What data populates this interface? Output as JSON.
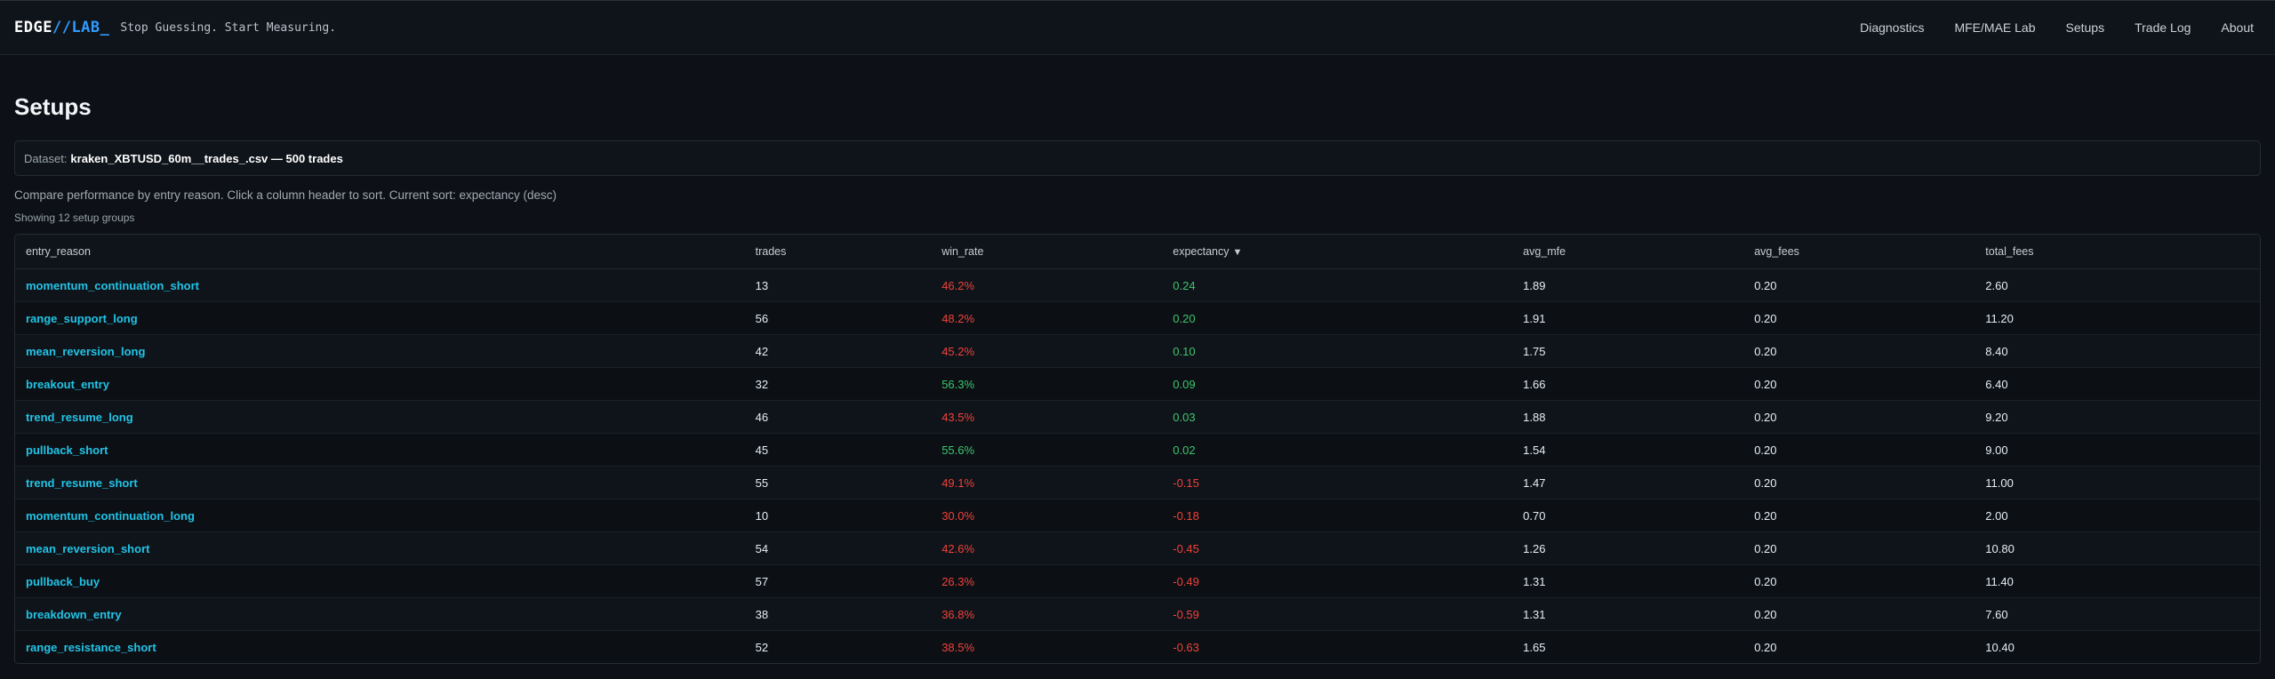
{
  "header": {
    "logo": {
      "part1": "EDGE",
      "part2": "//",
      "part3": "LAB",
      "part4": "_"
    },
    "tagline": "Stop Guessing. Start Measuring.",
    "nav": [
      "Diagnostics",
      "MFE/MAE Lab",
      "Setups",
      "Trade Log",
      "About"
    ]
  },
  "page": {
    "title": "Setups",
    "dataset_label": "Dataset:",
    "dataset_value": "kraken_XBTUSD_60m__trades_.csv — 500 trades",
    "description": "Compare performance by entry reason. Click a column header to sort. Current sort: expectancy (desc)",
    "showing": "Showing 12 setup groups"
  },
  "colors": {
    "link": "#22c3e6",
    "positive": "#3ec46d",
    "negative": "#f0413a",
    "accent": "#2f9bff"
  },
  "table": {
    "columns": [
      "entry_reason",
      "trades",
      "win_rate",
      "expectancy",
      "avg_mfe",
      "avg_fees",
      "total_fees"
    ],
    "sort_indicator": "▼",
    "rows": [
      {
        "entry_reason": "momentum_continuation_short",
        "trades": "13",
        "win_rate": "46.2%",
        "win_class": "neg",
        "expectancy": "0.24",
        "exp_class": "pos",
        "avg_mfe": "1.89",
        "avg_fees": "0.20",
        "total_fees": "2.60"
      },
      {
        "entry_reason": "range_support_long",
        "trades": "56",
        "win_rate": "48.2%",
        "win_class": "neg",
        "expectancy": "0.20",
        "exp_class": "pos",
        "avg_mfe": "1.91",
        "avg_fees": "0.20",
        "total_fees": "11.20"
      },
      {
        "entry_reason": "mean_reversion_long",
        "trades": "42",
        "win_rate": "45.2%",
        "win_class": "neg",
        "expectancy": "0.10",
        "exp_class": "pos",
        "avg_mfe": "1.75",
        "avg_fees": "0.20",
        "total_fees": "8.40"
      },
      {
        "entry_reason": "breakout_entry",
        "trades": "32",
        "win_rate": "56.3%",
        "win_class": "pos",
        "expectancy": "0.09",
        "exp_class": "pos",
        "avg_mfe": "1.66",
        "avg_fees": "0.20",
        "total_fees": "6.40"
      },
      {
        "entry_reason": "trend_resume_long",
        "trades": "46",
        "win_rate": "43.5%",
        "win_class": "neg",
        "expectancy": "0.03",
        "exp_class": "pos",
        "avg_mfe": "1.88",
        "avg_fees": "0.20",
        "total_fees": "9.20"
      },
      {
        "entry_reason": "pullback_short",
        "trades": "45",
        "win_rate": "55.6%",
        "win_class": "pos",
        "expectancy": "0.02",
        "exp_class": "pos",
        "avg_mfe": "1.54",
        "avg_fees": "0.20",
        "total_fees": "9.00"
      },
      {
        "entry_reason": "trend_resume_short",
        "trades": "55",
        "win_rate": "49.1%",
        "win_class": "neg",
        "expectancy": "-0.15",
        "exp_class": "neg",
        "avg_mfe": "1.47",
        "avg_fees": "0.20",
        "total_fees": "11.00"
      },
      {
        "entry_reason": "momentum_continuation_long",
        "trades": "10",
        "win_rate": "30.0%",
        "win_class": "neg",
        "expectancy": "-0.18",
        "exp_class": "neg",
        "avg_mfe": "0.70",
        "avg_fees": "0.20",
        "total_fees": "2.00"
      },
      {
        "entry_reason": "mean_reversion_short",
        "trades": "54",
        "win_rate": "42.6%",
        "win_class": "neg",
        "expectancy": "-0.45",
        "exp_class": "neg",
        "avg_mfe": "1.26",
        "avg_fees": "0.20",
        "total_fees": "10.80"
      },
      {
        "entry_reason": "pullback_buy",
        "trades": "57",
        "win_rate": "26.3%",
        "win_class": "neg",
        "expectancy": "-0.49",
        "exp_class": "neg",
        "avg_mfe": "1.31",
        "avg_fees": "0.20",
        "total_fees": "11.40"
      },
      {
        "entry_reason": "breakdown_entry",
        "trades": "38",
        "win_rate": "36.8%",
        "win_class": "neg",
        "expectancy": "-0.59",
        "exp_class": "neg",
        "avg_mfe": "1.31",
        "avg_fees": "0.20",
        "total_fees": "7.60"
      },
      {
        "entry_reason": "range_resistance_short",
        "trades": "52",
        "win_rate": "38.5%",
        "win_class": "neg",
        "expectancy": "-0.63",
        "exp_class": "neg",
        "avg_mfe": "1.65",
        "avg_fees": "0.20",
        "total_fees": "10.40"
      }
    ]
  }
}
